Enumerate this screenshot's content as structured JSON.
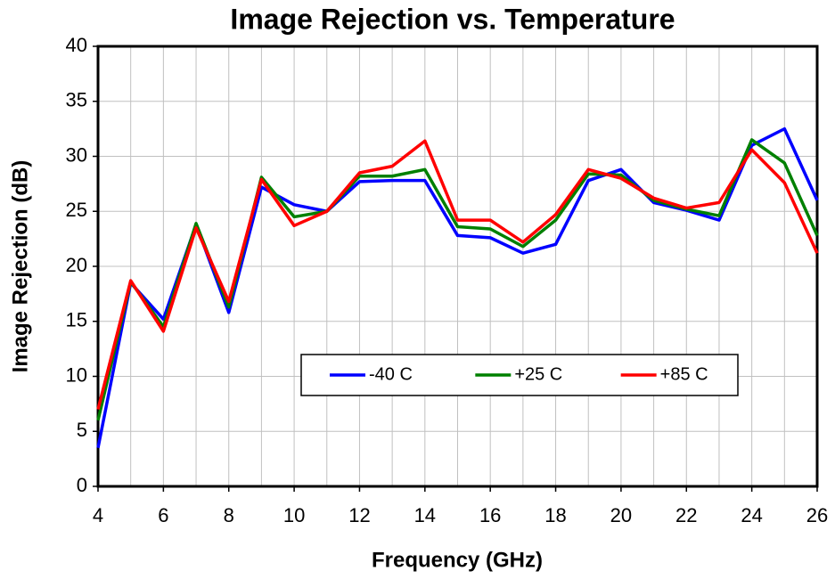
{
  "chart_data": {
    "type": "line",
    "title": "Image Rejection vs. Temperature",
    "x_label": "Frequency (GHz)",
    "y_label": "Image Rejection (dB)",
    "x": [
      4,
      5,
      6,
      7,
      8,
      9,
      10,
      11,
      12,
      13,
      14,
      15,
      16,
      17,
      18,
      19,
      20,
      21,
      22,
      23,
      24,
      25,
      26
    ],
    "series": [
      {
        "name": "-40 C",
        "color": "#0000ff",
        "values": [
          3.5,
          18.5,
          15.2,
          23.8,
          15.8,
          27.2,
          25.6,
          25.0,
          27.7,
          27.8,
          27.8,
          22.8,
          22.6,
          21.2,
          22.0,
          27.8,
          28.8,
          25.8,
          25.1,
          24.2,
          31.0,
          32.5,
          26.0
        ]
      },
      {
        "name": "+25 C",
        "color": "#008000",
        "values": [
          6.0,
          18.6,
          14.5,
          23.9,
          16.3,
          28.1,
          24.5,
          25.0,
          28.2,
          28.2,
          28.8,
          23.6,
          23.4,
          21.8,
          24.2,
          28.4,
          28.3,
          26.0,
          25.2,
          24.6,
          31.5,
          29.4,
          22.8
        ]
      },
      {
        "name": "+85 C",
        "color": "#ff0000",
        "values": [
          7.0,
          18.7,
          14.1,
          23.5,
          16.8,
          27.9,
          23.7,
          25.0,
          28.5,
          29.1,
          31.4,
          24.2,
          24.2,
          22.2,
          24.7,
          28.8,
          28.0,
          26.2,
          25.3,
          25.8,
          30.6,
          27.6,
          21.2
        ]
      }
    ],
    "xlim": [
      4,
      26
    ],
    "xticks": [
      4,
      6,
      8,
      10,
      12,
      14,
      16,
      18,
      20,
      22,
      24,
      26
    ],
    "ylim": [
      0,
      40
    ],
    "yticks": [
      0,
      5,
      10,
      15,
      20,
      25,
      30,
      35,
      40
    ],
    "grid": true
  }
}
